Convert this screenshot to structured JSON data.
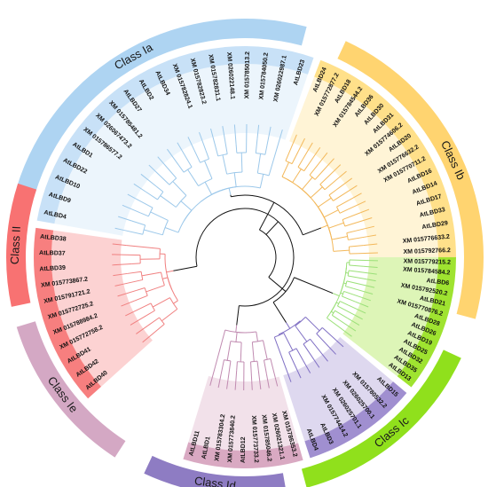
{
  "clades": [
    {
      "name": "Class Ia",
      "band_color": "#aed4f2",
      "sector_color": "#c8e1f7",
      "branch_color": "#9cc8ea",
      "leaves": [
        "AtLBD4",
        "AtLBD9",
        "AtLBD10",
        "AtLBD22",
        "AtLBD1",
        "XM 015786577.2",
        "XM 026067473.2",
        "XM 015785481.2",
        "AtLBD27",
        "AtLBD2",
        "AtLBD34",
        "XM 015782824.1",
        "XM 015782823.2",
        "XM 015782831.1",
        "XM 026022148.1",
        "XM 015785013.2",
        "XM 015784050.2",
        "XM 026022987.1",
        "AtLBD23"
      ]
    },
    {
      "name": "Class Ib",
      "band_color": "#ffd470",
      "sector_color": "#ffe08a",
      "branch_color": "#f3b85a",
      "leaves": [
        "AtLBD24",
        "XM 015772877.2",
        "AtLBD18",
        "XM 015784544.2",
        "AtLBD36",
        "AtLBD30",
        "AtLBD31",
        "XM 015774606.2",
        "AtLBD20",
        "XM 015776632.2",
        "XM 015770711.2",
        "AtLBD16",
        "AtLBD14",
        "AtLBD17",
        "AtLBD33",
        "AtLBD29",
        "XM 015776633.2",
        "XM 015792766.2"
      ]
    },
    {
      "name": "Class Ic",
      "band_color": "#90e01c",
      "sector_color": "#9fe330",
      "branch_color": "#9be078",
      "leaves": [
        "XM 015779215.2",
        "XM 015784584.2",
        "AtLBD6",
        "XM 015792520.2",
        "AtLBD21",
        "XM 015770876.2",
        "AtLBD28",
        "AtLBD26",
        "AtLBD19",
        "AtLBD25",
        "AtLBD32",
        "AtLBD35",
        "AtLBD13"
      ]
    },
    {
      "name": "Class Id",
      "band_color": "#8e7cc3",
      "sector_color": "#a08fd0",
      "branch_color": "#8070c4",
      "leaves": [
        "AtLBD15",
        "XM 015780532.2",
        "XM 026025700.1",
        "XM 026025701.1",
        "XM 015774414.2",
        "AtLBD3",
        "AtLBD4"
      ]
    },
    {
      "name": "Class Ie",
      "band_color": "#d4a8c4",
      "sector_color": "#d9a9c2",
      "branch_color": "#c08ab0",
      "leaves": [
        "XM 015786353.2",
        "XM 026021321.1",
        "XM 015785046.2",
        "XM 015773733.2",
        "AtLBD12",
        "XM 015773840.2",
        "XM 015783304.2",
        "AtLBD1",
        "AtLBD11"
      ]
    },
    {
      "name": "Class II",
      "band_color": "#f87272",
      "sector_color": "#f77f7f",
      "branch_color": "#f08080",
      "leaves": [
        "AtLBD40",
        "AtLBD42",
        "AtLBD41",
        "XM 015772758.2",
        "XM 015788984.2",
        "XM 015772725.2",
        "XM 015791721.2",
        "XM 015773867.2",
        "AtLBD39",
        "AtLBD37",
        "AtLBD38"
      ]
    }
  ]
}
